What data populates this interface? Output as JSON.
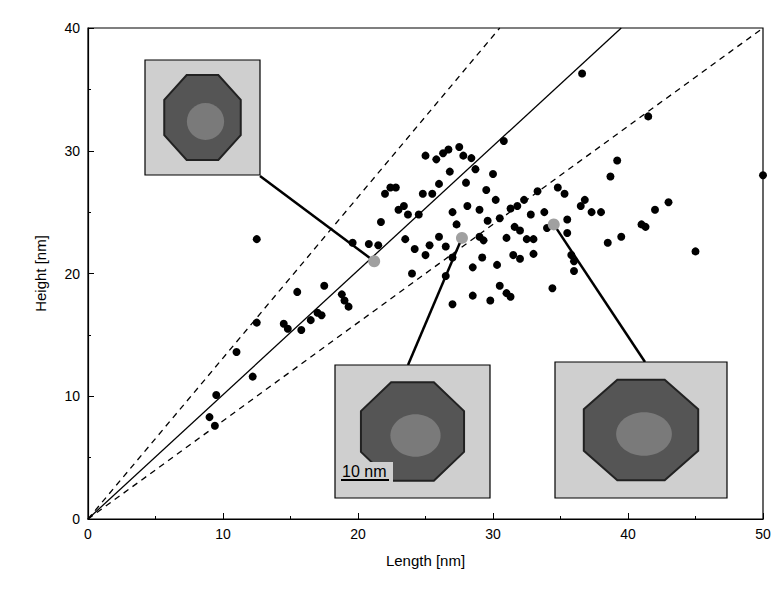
{
  "chart_data": {
    "type": "scatter",
    "x_label": "Length [nm]",
    "y_label": "Height [nm]",
    "xlim": [
      0,
      50
    ],
    "xticks": [
      0,
      10,
      20,
      30,
      40,
      50
    ],
    "ylim": [
      0,
      40
    ],
    "yticks": [
      0,
      10,
      20,
      30,
      40
    ],
    "grid": false,
    "annotations": [
      "10 nm"
    ],
    "series": [
      {
        "type": "scatter",
        "color": "#000000",
        "marker": "circle",
        "x": [
          9,
          9.4,
          9.5,
          11,
          12.2,
          12.5,
          12.5,
          14.5,
          14.8,
          15.5,
          15.8,
          16.5,
          17,
          17.5,
          17.3,
          18.8,
          19,
          19.3,
          19.6,
          20.8,
          21.5,
          21.7,
          22,
          22.4,
          22.8,
          23,
          23.5,
          23.4,
          23.7,
          24,
          24.2,
          24.5,
          24.8,
          25,
          25,
          25.3,
          25.5,
          25.8,
          26,
          26,
          26.3,
          26.5,
          26.5,
          26.7,
          26.8,
          27,
          27,
          27,
          27.3,
          27.5,
          27.8,
          28,
          28.1,
          28.4,
          28.5,
          28.5,
          28.7,
          29,
          29,
          29.2,
          29.3,
          29.5,
          29.6,
          29.8,
          30,
          30.2,
          30.3,
          30.5,
          30.5,
          30.8,
          31,
          31,
          31.3,
          31.3,
          31.5,
          31.6,
          31.8,
          32,
          32,
          32.3,
          32.5,
          32.8,
          33,
          33,
          33.3,
          33.8,
          34,
          34.4,
          34.8,
          35.3,
          35.5,
          35.5,
          35.8,
          36,
          36,
          36.5,
          36.6,
          36.8,
          37.3,
          38,
          38.5,
          38.7,
          39.2,
          39.5,
          41,
          41.3,
          41.5,
          42,
          43,
          45,
          50
        ],
        "values": [
          8.3,
          7.6,
          10.1,
          13.6,
          11.6,
          16,
          22.8,
          15.9,
          15.5,
          18.5,
          15.4,
          16.2,
          16.8,
          19,
          16.6,
          18.3,
          17.8,
          17.3,
          22.5,
          22.4,
          22.3,
          24.2,
          26.5,
          27,
          27,
          25.2,
          22.8,
          25.5,
          24.8,
          20,
          22,
          24.8,
          26.5,
          29.6,
          21.5,
          22.3,
          26.5,
          29.3,
          27.3,
          23,
          29.8,
          22.2,
          19.8,
          30.1,
          28.3,
          25,
          21.3,
          17.5,
          24,
          30.3,
          29.6,
          27.4,
          25.5,
          29.4,
          20.5,
          18.2,
          28.5,
          25.2,
          23,
          21.3,
          22.7,
          26.8,
          24.3,
          17.8,
          28.1,
          26,
          20.7,
          19,
          24.5,
          30.8,
          18.4,
          22.9,
          18.1,
          25.3,
          21.5,
          23.8,
          25.5,
          21.2,
          23.5,
          26,
          22.8,
          24.8,
          21.6,
          22.8,
          26.7,
          25,
          23.7,
          18.8,
          27,
          26.5,
          23.3,
          24.4,
          21.5,
          20.2,
          21,
          25.5,
          36.3,
          26,
          25,
          25,
          22.5,
          27.9,
          29.2,
          23,
          24,
          23.8,
          32.8,
          25.2,
          25.8,
          21.8,
          28
        ]
      },
      {
        "type": "scatter",
        "color": "#a0a0a0",
        "marker": "circle",
        "x": [
          21.2,
          27.7,
          34.5
        ],
        "values": [
          21,
          22.9,
          24
        ]
      },
      {
        "type": "line",
        "color": "#000000",
        "line_style": "dashed",
        "x": [
          0,
          30.5
        ],
        "values": [
          0,
          40
        ]
      },
      {
        "type": "line",
        "color": "#000000",
        "line_style": "solid",
        "x": [
          0,
          39.5
        ],
        "values": [
          0,
          40
        ]
      },
      {
        "type": "line",
        "color": "#000000",
        "line_style": "dashed",
        "x": [
          0,
          50
        ],
        "values": [
          0,
          40
        ]
      }
    ]
  }
}
